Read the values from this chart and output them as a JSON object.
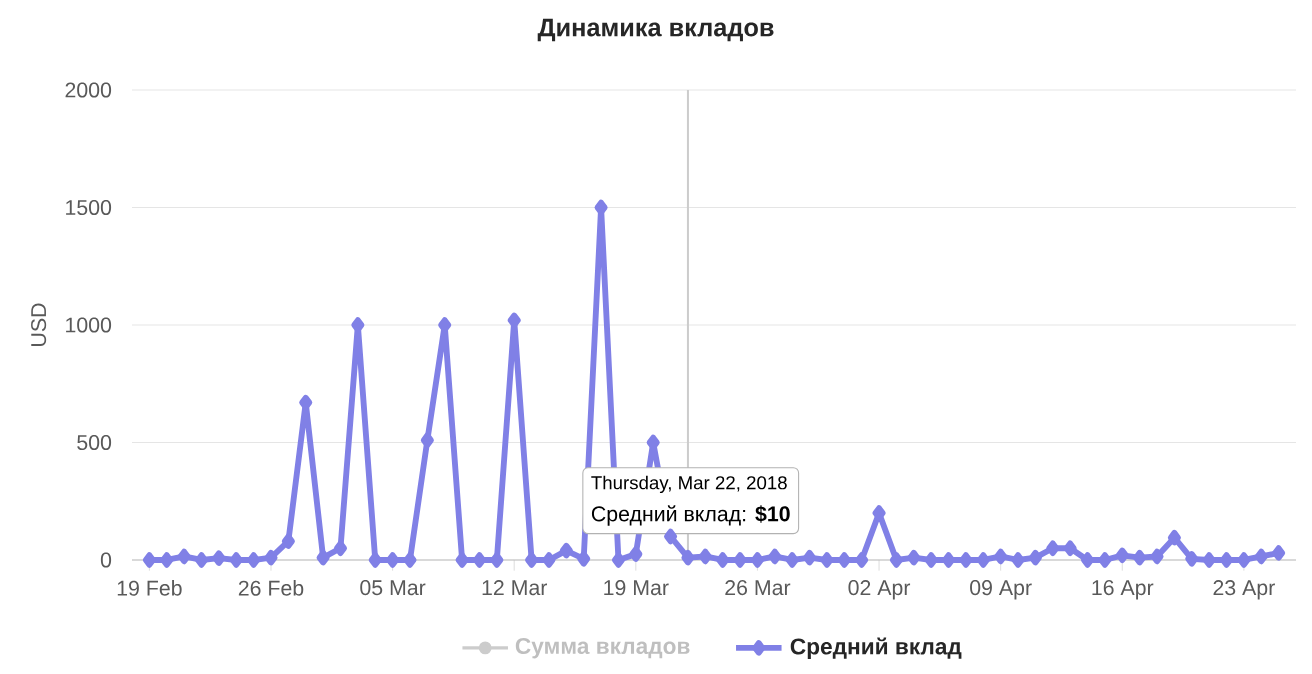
{
  "chart_data": {
    "type": "line",
    "title": "Динамика вкладов",
    "ylabel": "USD",
    "x": [
      "2018-02-19",
      "2018-02-20",
      "2018-02-21",
      "2018-02-22",
      "2018-02-23",
      "2018-02-24",
      "2018-02-25",
      "2018-02-26",
      "2018-02-27",
      "2018-02-28",
      "2018-03-01",
      "2018-03-02",
      "2018-03-03",
      "2018-03-04",
      "2018-03-05",
      "2018-03-06",
      "2018-03-07",
      "2018-03-08",
      "2018-03-09",
      "2018-03-10",
      "2018-03-11",
      "2018-03-12",
      "2018-03-13",
      "2018-03-14",
      "2018-03-15",
      "2018-03-16",
      "2018-03-17",
      "2018-03-18",
      "2018-03-19",
      "2018-03-20",
      "2018-03-21",
      "2018-03-22",
      "2018-03-23",
      "2018-03-24",
      "2018-03-25",
      "2018-03-26",
      "2018-03-27",
      "2018-03-28",
      "2018-03-29",
      "2018-03-30",
      "2018-03-31",
      "2018-04-01",
      "2018-04-02",
      "2018-04-03",
      "2018-04-04",
      "2018-04-05",
      "2018-04-06",
      "2018-04-07",
      "2018-04-08",
      "2018-04-09",
      "2018-04-10",
      "2018-04-11",
      "2018-04-12",
      "2018-04-13",
      "2018-04-14",
      "2018-04-15",
      "2018-04-16",
      "2018-04-17",
      "2018-04-18",
      "2018-04-19",
      "2018-04-20",
      "2018-04-21",
      "2018-04-22",
      "2018-04-23",
      "2018-04-24",
      "2018-04-25"
    ],
    "series": [
      {
        "name": "Сумма вкладов",
        "color": "#cccccc",
        "marker": "circle",
        "values": [
          null,
          null,
          null,
          null,
          null,
          null,
          null,
          null,
          null,
          null,
          null,
          null,
          null,
          null,
          null,
          null,
          null,
          null,
          null,
          null,
          null,
          null,
          null,
          null,
          null,
          null,
          null,
          null,
          null,
          null,
          null,
          null,
          null,
          null,
          null,
          null,
          null,
          null,
          null,
          null,
          null,
          null,
          null,
          null,
          null,
          null,
          null,
          null,
          null,
          null,
          null,
          null,
          null,
          null,
          null,
          null,
          null,
          null,
          null,
          null,
          null,
          null,
          null,
          null,
          null,
          null
        ]
      },
      {
        "name": "Средний вклад",
        "color": "#8080e6",
        "values": [
          0,
          0,
          15,
          0,
          8,
          0,
          0,
          10,
          80,
          670,
          10,
          50,
          1000,
          0,
          0,
          0,
          510,
          1000,
          0,
          0,
          0,
          1020,
          0,
          0,
          40,
          5,
          1500,
          0,
          25,
          500,
          100,
          10,
          15,
          0,
          0,
          0,
          15,
          0,
          10,
          0,
          0,
          0,
          200,
          0,
          10,
          0,
          0,
          0,
          0,
          15,
          0,
          10,
          50,
          50,
          0,
          0,
          20,
          10,
          15,
          95,
          5,
          0,
          0,
          0,
          15,
          30
        ]
      }
    ],
    "xlim": [
      "2018-02-18",
      "2018-04-26"
    ],
    "xticks": [
      {
        "value": "2018-02-19",
        "label": "19 Feb"
      },
      {
        "value": "2018-02-26",
        "label": "26 Feb"
      },
      {
        "value": "2018-03-05",
        "label": "05 Mar"
      },
      {
        "value": "2018-03-12",
        "label": "12 Mar"
      },
      {
        "value": "2018-03-19",
        "label": "19 Mar"
      },
      {
        "value": "2018-03-26",
        "label": "26 Mar"
      },
      {
        "value": "2018-04-02",
        "label": "02 Apr"
      },
      {
        "value": "2018-04-09",
        "label": "09 Apr"
      },
      {
        "value": "2018-04-16",
        "label": "16 Apr"
      },
      {
        "value": "2018-04-23",
        "label": "23 Apr"
      }
    ],
    "ylim": [
      0,
      2000
    ],
    "yticks": [
      0,
      500,
      1000,
      1500,
      2000
    ],
    "grid": "y",
    "legend": "bottom",
    "marker": "diamond",
    "line_style": "solid",
    "ref_lines": [
      {
        "axis": "x",
        "value": "2018-03-22",
        "color": "#cccccc"
      }
    ],
    "annotations": [
      "Thursday, Mar 22, 2018",
      "Средний вклад: **$10**"
    ]
  }
}
